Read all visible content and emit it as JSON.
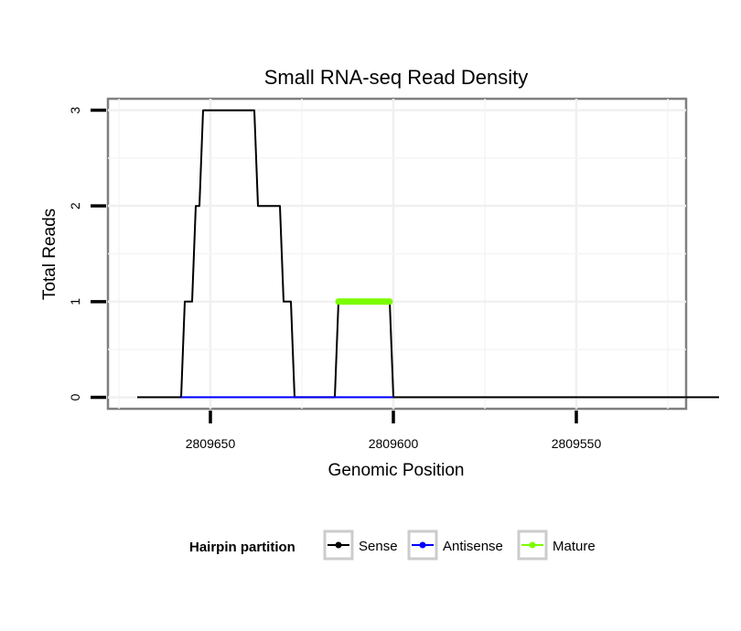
{
  "chart_data": {
    "type": "line",
    "title": "Small RNA-seq Read Density",
    "xlabel": "Genomic Position",
    "ylabel": "Total Reads",
    "x_reversed": true,
    "xlim": [
      2809678,
      2809520
    ],
    "ylim": [
      -0.12,
      3.12
    ],
    "x_ticks": [
      2809650,
      2809600,
      2809550
    ],
    "x_tick_labels": [
      "2809650",
      "2809600",
      "2809550"
    ],
    "y_ticks": [
      0,
      1,
      2,
      3
    ],
    "y_tick_labels": [
      "0",
      "1",
      "2",
      "3"
    ],
    "grid": true,
    "legend": {
      "title": "Hairpin partition",
      "position": "bottom",
      "entries": [
        "Sense",
        "Antisense",
        "Mature"
      ]
    },
    "colors": {
      "Sense": "#000000",
      "Antisense": "#0000ff",
      "Mature": "#7cfc00"
    },
    "series": [
      {
        "name": "Sense",
        "x": [
          2809670,
          2809658,
          2809657,
          2809655,
          2809654,
          2809653,
          2809652,
          2809651,
          2809650,
          2809649,
          2809648,
          2809647,
          2809646,
          2809645,
          2809644,
          2809643,
          2809642,
          2809641,
          2809640,
          2809639,
          2809638,
          2809637,
          2809636,
          2809635,
          2809634,
          2809633,
          2809632,
          2809631,
          2809630,
          2809629,
          2809628,
          2809627,
          2809626,
          2809625,
          2809616,
          2809615,
          2809601,
          2809600,
          2809511
        ],
        "y": [
          0,
          0,
          1,
          1,
          2,
          2,
          3,
          3,
          3,
          3,
          3,
          3,
          3,
          3,
          3,
          3,
          3,
          3,
          3,
          3,
          3,
          2,
          2,
          2,
          2,
          2,
          2,
          2,
          1,
          1,
          1,
          0,
          0,
          0,
          0,
          1,
          1,
          0,
          0
        ]
      },
      {
        "name": "Antisense",
        "x": [
          2809658,
          2809627,
          2809616,
          2809600
        ],
        "y": [
          0,
          0,
          0,
          0
        ]
      },
      {
        "name": "Mature",
        "x": [
          2809615,
          2809601
        ],
        "y": [
          1,
          1
        ]
      }
    ]
  }
}
